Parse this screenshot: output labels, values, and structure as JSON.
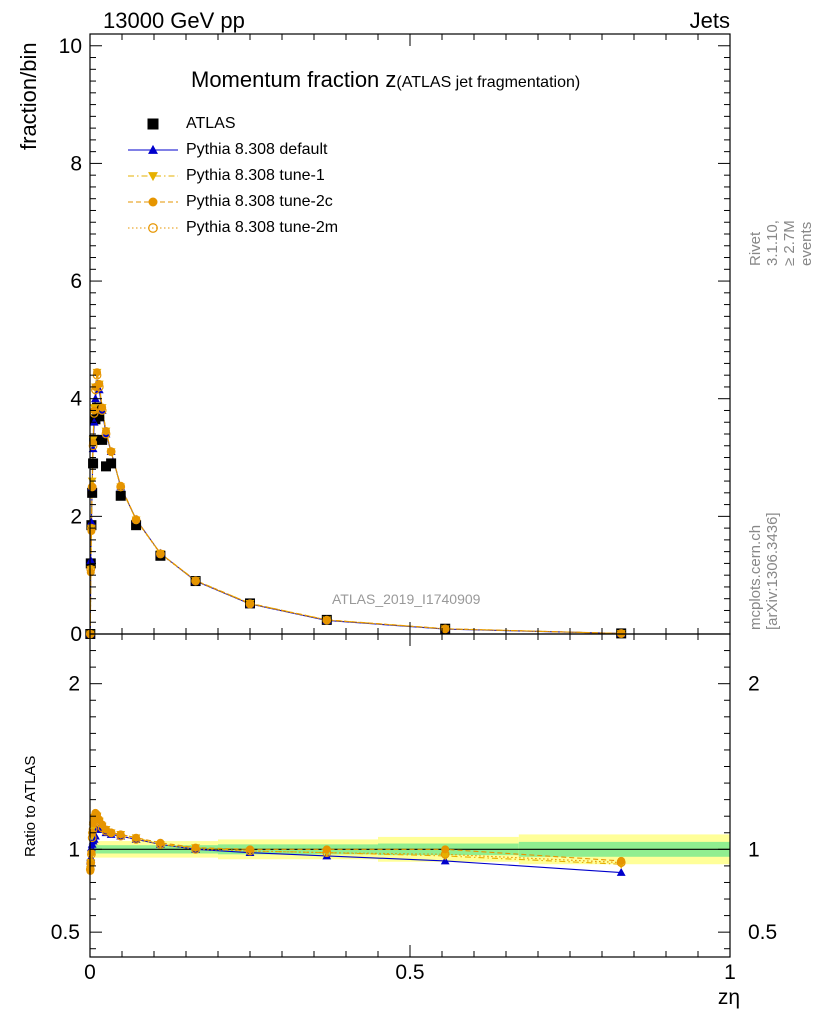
{
  "header": {
    "left": "13000 GeV pp",
    "right": "Jets"
  },
  "plot_title": {
    "main": "Momentum fraction z",
    "sub": "(ATLAS jet fragmentation)"
  },
  "y_label_top": "fraction/bin",
  "y_label_ratio": "Ratio to ATLAS",
  "x_label": "zη",
  "side_text_1": "Rivet 3.1.10, ≥ 2.7M events",
  "side_text_2": "mcplots.cern.ch [arXiv:1306.3436]",
  "analysis_label": "ATLAS_2019_I1740909",
  "legend": [
    {
      "label": "ATLAS",
      "marker": "filled-square",
      "color": "#000000"
    },
    {
      "label": "Pythia 8.308 default",
      "marker": "filled-triangle-up",
      "color": "#0000cc"
    },
    {
      "label": "Pythia 8.308 tune-1",
      "marker": "filled-triangle-down",
      "color": "#e6b000"
    },
    {
      "label": "Pythia 8.308 tune-2c",
      "marker": "filled-circle",
      "color": "#e69500"
    },
    {
      "label": "Pythia 8.308 tune-2m",
      "marker": "open-circle",
      "color": "#e69500"
    }
  ],
  "chart_data": [
    {
      "type": "scatter",
      "panel": "main",
      "title": "Momentum fraction z (ATLAS jet fragmentation)",
      "xlabel": "zη",
      "ylabel": "fraction/bin",
      "xlim": [
        0,
        1
      ],
      "ylim": [
        0,
        10.2
      ],
      "y_ticks": [
        0,
        2,
        4,
        6,
        8,
        10
      ],
      "x_ticks": [
        0,
        0.5,
        1
      ],
      "x_tick_labels": [
        "0",
        "0.5",
        "1"
      ],
      "x": [
        0.0005,
        0.0012,
        0.0022,
        0.0034,
        0.0048,
        0.0065,
        0.0085,
        0.011,
        0.0145,
        0.019,
        0.025,
        0.033,
        0.048,
        0.072,
        0.11,
        0.165,
        0.25,
        0.37,
        0.555,
        0.83
      ],
      "series": [
        {
          "name": "ATLAS",
          "marker": "filled-square",
          "color": "#000000",
          "values": [
            0.0,
            1.2,
            1.85,
            2.4,
            2.9,
            3.3,
            3.65,
            3.85,
            3.7,
            3.3,
            2.85,
            2.9,
            2.35,
            1.85,
            1.33,
            0.9,
            0.52,
            0.24,
            0.09,
            0.01
          ]
        },
        {
          "name": "Pythia 8.308 default",
          "marker": "filled-triangle-up",
          "color": "#0000cc",
          "linestyle": "solid",
          "values": [
            0.0,
            1.25,
            1.9,
            2.5,
            3.15,
            3.6,
            4.0,
            4.25,
            4.15,
            3.8,
            3.4,
            3.1,
            2.5,
            1.95,
            1.37,
            0.9,
            0.51,
            0.23,
            0.083,
            0.009
          ]
        },
        {
          "name": "Pythia 8.308 tune-1",
          "marker": "filled-triangle-down",
          "color": "#e6b000",
          "linestyle": "dashdot",
          "values": [
            0.0,
            1.1,
            1.8,
            2.6,
            3.3,
            3.85,
            4.2,
            4.45,
            4.25,
            3.85,
            3.45,
            3.1,
            2.5,
            1.94,
            1.37,
            0.91,
            0.52,
            0.24,
            0.088,
            0.0091
          ]
        },
        {
          "name": "Pythia 8.308 tune-2c",
          "marker": "filled-circle",
          "color": "#e69500",
          "linestyle": "dashed",
          "values": [
            0.0,
            1.05,
            1.75,
            2.5,
            3.25,
            3.8,
            4.2,
            4.45,
            4.25,
            3.85,
            3.45,
            3.1,
            2.52,
            1.95,
            1.37,
            0.91,
            0.52,
            0.24,
            0.09,
            0.0093
          ]
        },
        {
          "name": "Pythia 8.308 tune-2m",
          "marker": "open-circle",
          "color": "#e69500",
          "linestyle": "dotted",
          "values": [
            0.0,
            1.1,
            1.8,
            2.5,
            3.2,
            3.75,
            4.15,
            4.4,
            4.2,
            3.8,
            3.4,
            3.1,
            2.5,
            1.94,
            1.36,
            0.9,
            0.51,
            0.235,
            0.087,
            0.009
          ]
        }
      ]
    },
    {
      "type": "scatter",
      "panel": "ratio",
      "ylabel": "Ratio to ATLAS",
      "xlabel": "zη",
      "xlim": [
        0,
        1
      ],
      "ylim": [
        0.35,
        2.3
      ],
      "y_ticks": [
        0.5,
        1,
        2
      ],
      "y_tick_labels": [
        "0.5",
        "1",
        "2"
      ],
      "x": [
        0.0005,
        0.0012,
        0.0022,
        0.0034,
        0.0048,
        0.0065,
        0.0085,
        0.011,
        0.0145,
        0.019,
        0.025,
        0.033,
        0.048,
        0.072,
        0.11,
        0.165,
        0.25,
        0.37,
        0.555,
        0.83
      ],
      "uncertainty_band": {
        "x_edges": [
          0,
          0.2,
          0.45,
          0.67,
          1.0
        ],
        "inner_halfwidth": [
          0.025,
          0.03,
          0.035,
          0.045
        ],
        "outer_halfwidth": [
          0.05,
          0.06,
          0.075,
          0.09
        ]
      },
      "series": [
        {
          "name": "Pythia 8.308 default",
          "marker": "filled-triangle-up",
          "color": "#0000cc",
          "linestyle": "solid",
          "values": [
            0.93,
            0.95,
            1.01,
            1.03,
            1.05,
            1.06,
            1.08,
            1.12,
            1.13,
            1.12,
            1.1,
            1.09,
            1.08,
            1.06,
            1.03,
            1.0,
            0.98,
            0.96,
            0.93,
            0.86
          ]
        },
        {
          "name": "Pythia 8.308 tune-1",
          "marker": "filled-triangle-down",
          "color": "#e6b000",
          "linestyle": "dashdot",
          "values": [
            0.88,
            0.92,
            0.97,
            1.08,
            1.13,
            1.17,
            1.19,
            1.2,
            1.17,
            1.14,
            1.12,
            1.1,
            1.09,
            1.07,
            1.03,
            1.01,
            0.99,
            0.98,
            0.96,
            0.91
          ]
        },
        {
          "name": "Pythia 8.308 tune-2c",
          "marker": "filled-circle",
          "color": "#e69500",
          "linestyle": "dashed",
          "values": [
            0.87,
            0.91,
            0.98,
            1.1,
            1.16,
            1.2,
            1.22,
            1.21,
            1.18,
            1.15,
            1.12,
            1.1,
            1.09,
            1.07,
            1.04,
            1.01,
            1.0,
            1.0,
            1.0,
            0.93
          ]
        },
        {
          "name": "Pythia 8.308 tune-2m",
          "marker": "open-circle",
          "color": "#e69500",
          "linestyle": "dotted",
          "values": [
            0.88,
            0.92,
            0.97,
            1.07,
            1.12,
            1.16,
            1.18,
            1.19,
            1.16,
            1.13,
            1.11,
            1.1,
            1.08,
            1.06,
            1.03,
            1.0,
            0.99,
            0.98,
            0.97,
            0.92
          ]
        }
      ]
    }
  ]
}
